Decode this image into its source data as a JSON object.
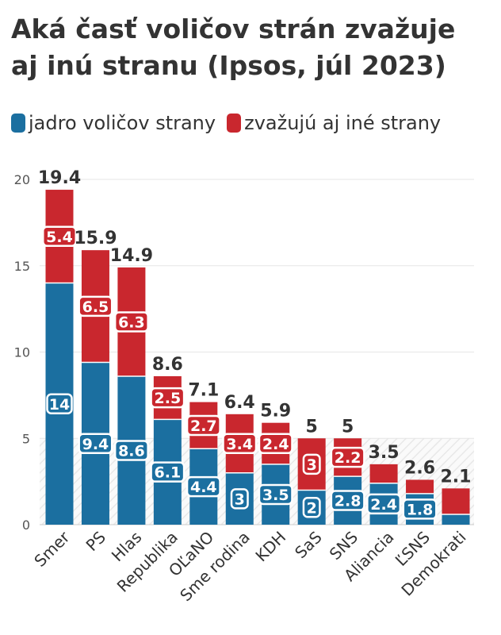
{
  "title": "Aká časť voličov strán zvažuje aj inú stranu (Ipsos, júl 2023)",
  "legend": {
    "core_label": "jadro voličov strany",
    "other_label": "zvažujú aj iné strany"
  },
  "colors": {
    "core": "#1b6fa0",
    "other": "#c9272e",
    "grid": "#e6e6e6",
    "text": "#333333"
  },
  "chart_data": {
    "type": "bar",
    "stacked": true,
    "categories": [
      "Smer",
      "PS",
      "Hlas",
      "Republika",
      "OĽaNO",
      "Sme rodina",
      "KDH",
      "SaS",
      "SNS",
      "Aliancia",
      "ĽSNS",
      "Demokrati"
    ],
    "series": [
      {
        "name": "jadro voličov strany",
        "values": [
          14,
          9.4,
          8.6,
          6.1,
          4.4,
          3,
          3.5,
          2,
          2.8,
          2.4,
          1.8,
          0.6
        ]
      },
      {
        "name": "zvažujú aj iné strany",
        "values": [
          5.4,
          6.5,
          6.3,
          2.5,
          2.7,
          3.4,
          2.4,
          3,
          2.2,
          1.1,
          0.8,
          1.5
        ]
      }
    ],
    "segment_labels": {
      "core": [
        "14",
        "9.4",
        "8.6",
        "6.1",
        "4.4",
        "3",
        "3.5",
        "2",
        "2.8",
        "2.4",
        "1.8",
        ""
      ],
      "other": [
        "5.4",
        "6.5",
        "6.3",
        "2.5",
        "2.7",
        "3.4",
        "2.4",
        "3",
        "2.2",
        "",
        "",
        ""
      ]
    },
    "totals": [
      "19.4",
      "15.9",
      "14.9",
      "8.6",
      "7.1",
      "6.4",
      "5.9",
      "5",
      "5",
      "3.5",
      "2.6",
      "2.1"
    ],
    "yticks": [
      0,
      5,
      10,
      15,
      20
    ],
    "ylim": [
      0,
      20
    ],
    "threshold": 5,
    "grid": true
  }
}
